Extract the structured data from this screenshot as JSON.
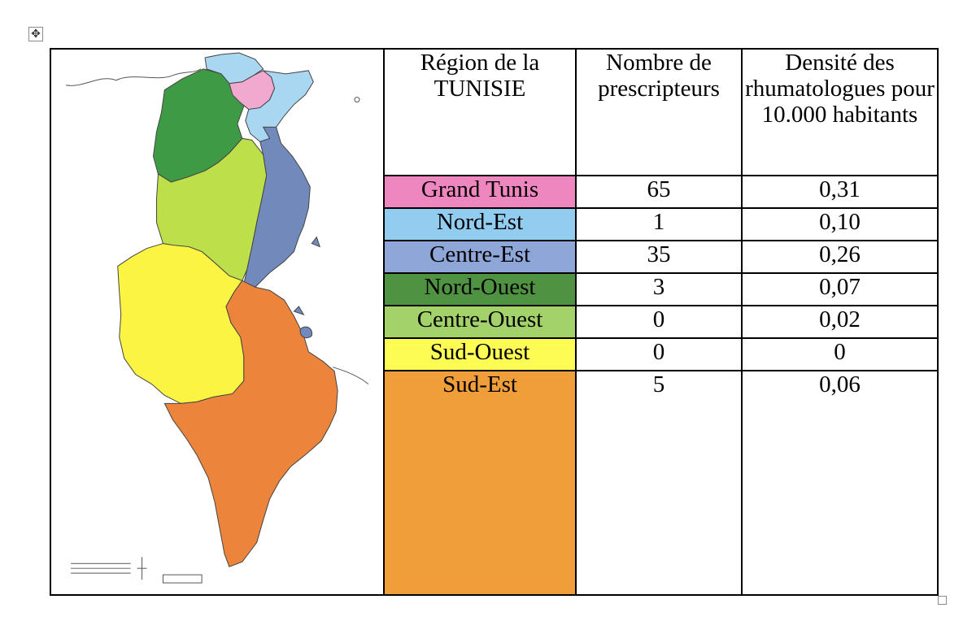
{
  "table": {
    "headers": {
      "region": "Région de la TUNISIE",
      "prescribers": "Nombre de prescripteurs",
      "density": "Densité des rhumatologues pour 10.000 habitants"
    },
    "rows": [
      {
        "region": "Grand Tunis",
        "prescribers": "65",
        "density": "0,31",
        "color": "#ee86bf"
      },
      {
        "region": "Nord-Est",
        "prescribers": "1",
        "density": "0,10",
        "color": "#92cdf0"
      },
      {
        "region": "Centre-Est",
        "prescribers": "35",
        "density": "0,26",
        "color": "#8ea6d8"
      },
      {
        "region": "Nord-Ouest",
        "prescribers": "3",
        "density": "0,07",
        "color": "#4f9342"
      },
      {
        "region": "Centre-Ouest",
        "prescribers": "0",
        "density": "0,02",
        "color": "#a4d26a"
      },
      {
        "region": "Sud-Ouest",
        "prescribers": "0",
        "density": "0",
        "color": "#fdfc55"
      },
      {
        "region": "Sud-Est",
        "prescribers": "5",
        "density": "0,06",
        "color": "#f09e3a"
      }
    ]
  },
  "map_colors": {
    "grand_tunis": "#f1a9cf",
    "nord_est": "#a9d7f1",
    "nord_ouest": "#3f9a45",
    "centre_ouest": "#bde04a",
    "centre_est": "#7189bb",
    "sud_ouest": "#fbf442",
    "sud_est": "#ec843c"
  },
  "icons": {
    "move": "move-arrows-icon",
    "resize": "resize-square-icon"
  }
}
